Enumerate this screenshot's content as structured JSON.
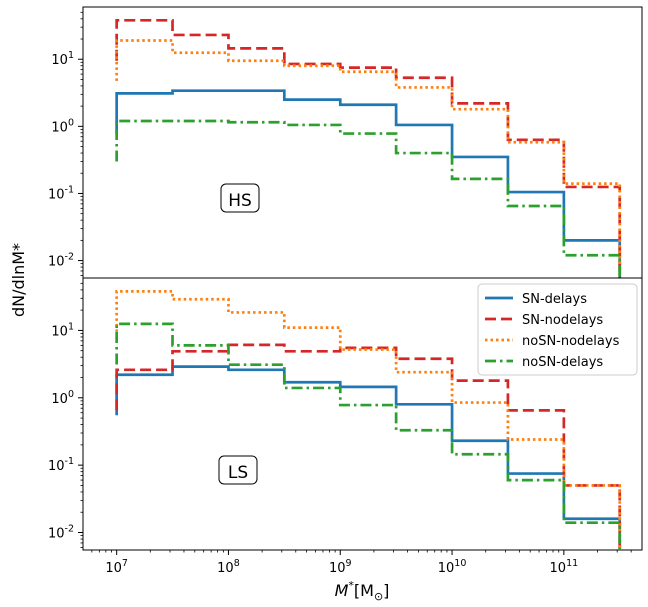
{
  "chart_data": {
    "type": "step",
    "xscale": "log",
    "yscale": "log",
    "xlim": [
      5000000.0,
      500000000000.0
    ],
    "xlabel_base": "M",
    "xlabel_sub": "*",
    "xlabel_unit": "[M",
    "xlabel_unit_sym": "⊙",
    "xlabel_close": "]",
    "ylabel": "dN/dlnM*",
    "x_ticks": [
      {
        "base": "10",
        "exp": "7",
        "value": 10000000.0
      },
      {
        "base": "10",
        "exp": "8",
        "value": 100000000.0
      },
      {
        "base": "10",
        "exp": "9",
        "value": 1000000000.0
      },
      {
        "base": "10",
        "exp": "10",
        "value": 10000000000.0
      },
      {
        "base": "10",
        "exp": "11",
        "value": 100000000000.0
      }
    ],
    "bin_edges": [
      10000000.0,
      31600000.0,
      100000000.0,
      316000000.0,
      1000000000.0,
      3160000000.0,
      10000000000.0,
      31600000000.0,
      100000000000.0,
      316000000000.0
    ],
    "y_ticks": [
      {
        "base": "10",
        "exp": "-2",
        "value": 0.01
      },
      {
        "base": "10",
        "exp": "-1",
        "value": 0.1
      },
      {
        "base": "10",
        "exp": "0",
        "value": 1
      },
      {
        "base": "10",
        "exp": "1",
        "value": 10
      }
    ],
    "legend": {
      "placement": "top-right of bottom panel",
      "entries": [
        {
          "name": "SN-delays",
          "color": "#1f77b4",
          "style": "solid"
        },
        {
          "name": "SN-nodelays",
          "color": "#d62728",
          "style": "dashed"
        },
        {
          "name": "noSN-nodelays",
          "color": "#ff7f0e",
          "style": "dotted"
        },
        {
          "name": "noSN-delays",
          "color": "#2ca02c",
          "style": "dashdot"
        }
      ]
    },
    "panels": [
      {
        "label": "HS",
        "ylim": [
          0.0055,
          60
        ],
        "series": [
          {
            "name": "SN-delays",
            "values": [
              3.1,
              3.4,
              3.4,
              2.5,
              2.1,
              1.05,
              0.35,
              0.105,
              0.02
            ]
          },
          {
            "name": "SN-nodelays",
            "values": [
              38,
              23,
              14.5,
              8.5,
              7.5,
              5.3,
              2.2,
              0.63,
              0.125
            ]
          },
          {
            "name": "noSN-nodelays",
            "values": [
              19,
              12.5,
              9.5,
              8.0,
              6.5,
              3.8,
              1.8,
              0.58,
              0.14
            ]
          },
          {
            "name": "noSN-delays",
            "values": [
              1.2,
              1.2,
              1.15,
              1.05,
              0.78,
              0.4,
              0.165,
              0.065,
              0.012
            ]
          }
        ]
      },
      {
        "label": "LS",
        "ylim": [
          0.0055,
          60
        ],
        "series": [
          {
            "name": "SN-delays",
            "values": [
              2.2,
              2.9,
              2.6,
              1.7,
              1.45,
              0.8,
              0.23,
              0.075,
              0.016
            ]
          },
          {
            "name": "SN-nodelays",
            "values": [
              2.6,
              4.9,
              6.1,
              4.9,
              5.5,
              3.8,
              1.8,
              0.65,
              0.05
            ]
          },
          {
            "name": "noSN-nodelays",
            "values": [
              38,
              29,
              18.5,
              11,
              5.2,
              2.4,
              0.85,
              0.24,
              0.05
            ]
          },
          {
            "name": "noSN-delays",
            "values": [
              12.5,
              6.0,
              3.1,
              1.4,
              0.78,
              0.33,
              0.145,
              0.06,
              0.014
            ]
          }
        ]
      }
    ]
  }
}
